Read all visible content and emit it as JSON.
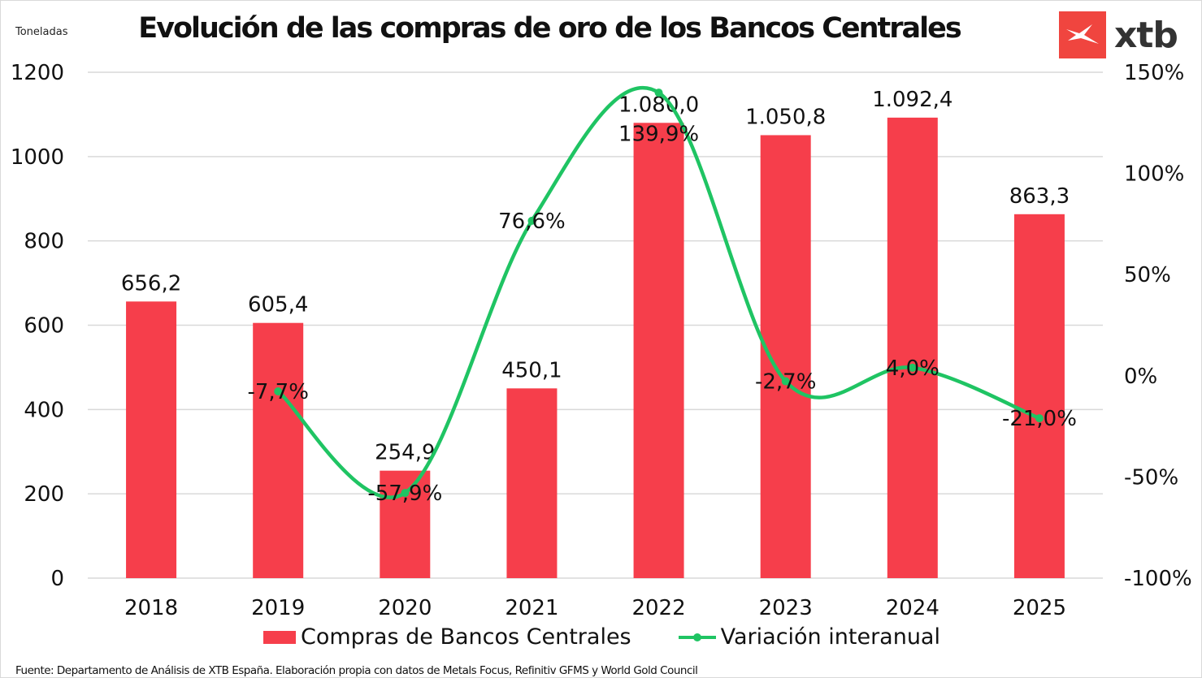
{
  "chart_data": {
    "type": "bar+line",
    "title": "Evolución de las compras de oro de los Bancos Centrales",
    "ylabel": "Toneladas",
    "categories": [
      "2018",
      "2019",
      "2020",
      "2021",
      "2022",
      "2023",
      "2024",
      "2025"
    ],
    "ylim": [
      0,
      1200
    ],
    "yticks": [
      "0",
      "200",
      "400",
      "600",
      "800",
      "1000",
      "1200"
    ],
    "y2lim": [
      -100,
      150
    ],
    "y2ticks": [
      "-100%",
      "-50%",
      "0%",
      "50%",
      "100%",
      "150%"
    ],
    "grid": true,
    "legend_position": "bottom",
    "series": [
      {
        "name": "Compras de Bancos Centrales",
        "type": "bar",
        "axis": "left",
        "color": "#f63e4b",
        "values": [
          656.2,
          605.4,
          254.9,
          450.1,
          1080.0,
          1050.8,
          1092.4,
          863.3
        ],
        "labels": [
          "656,2",
          "605,4",
          "254,9",
          "450,1",
          "1.080,0",
          "1.050,8",
          "1.092,4",
          "863,3"
        ]
      },
      {
        "name": "Variación interanual",
        "type": "line",
        "axis": "right",
        "color": "#1fc463",
        "values": [
          null,
          -7.7,
          -57.9,
          76.6,
          139.9,
          -2.7,
          4.0,
          -21.0
        ],
        "labels": [
          "",
          "-7,7%",
          "-57,9%",
          "76,6%",
          "139,9%",
          "-2,7%",
          "4,0%",
          "-21,0%"
        ]
      }
    ]
  },
  "brand": {
    "name": "xtb",
    "color": "#f0453f"
  },
  "source": "Fuente: Departamento de Análisis de XTB España. Elaboración propia con datos de Metals Focus, Refinitiv GFMS y World Gold Council"
}
